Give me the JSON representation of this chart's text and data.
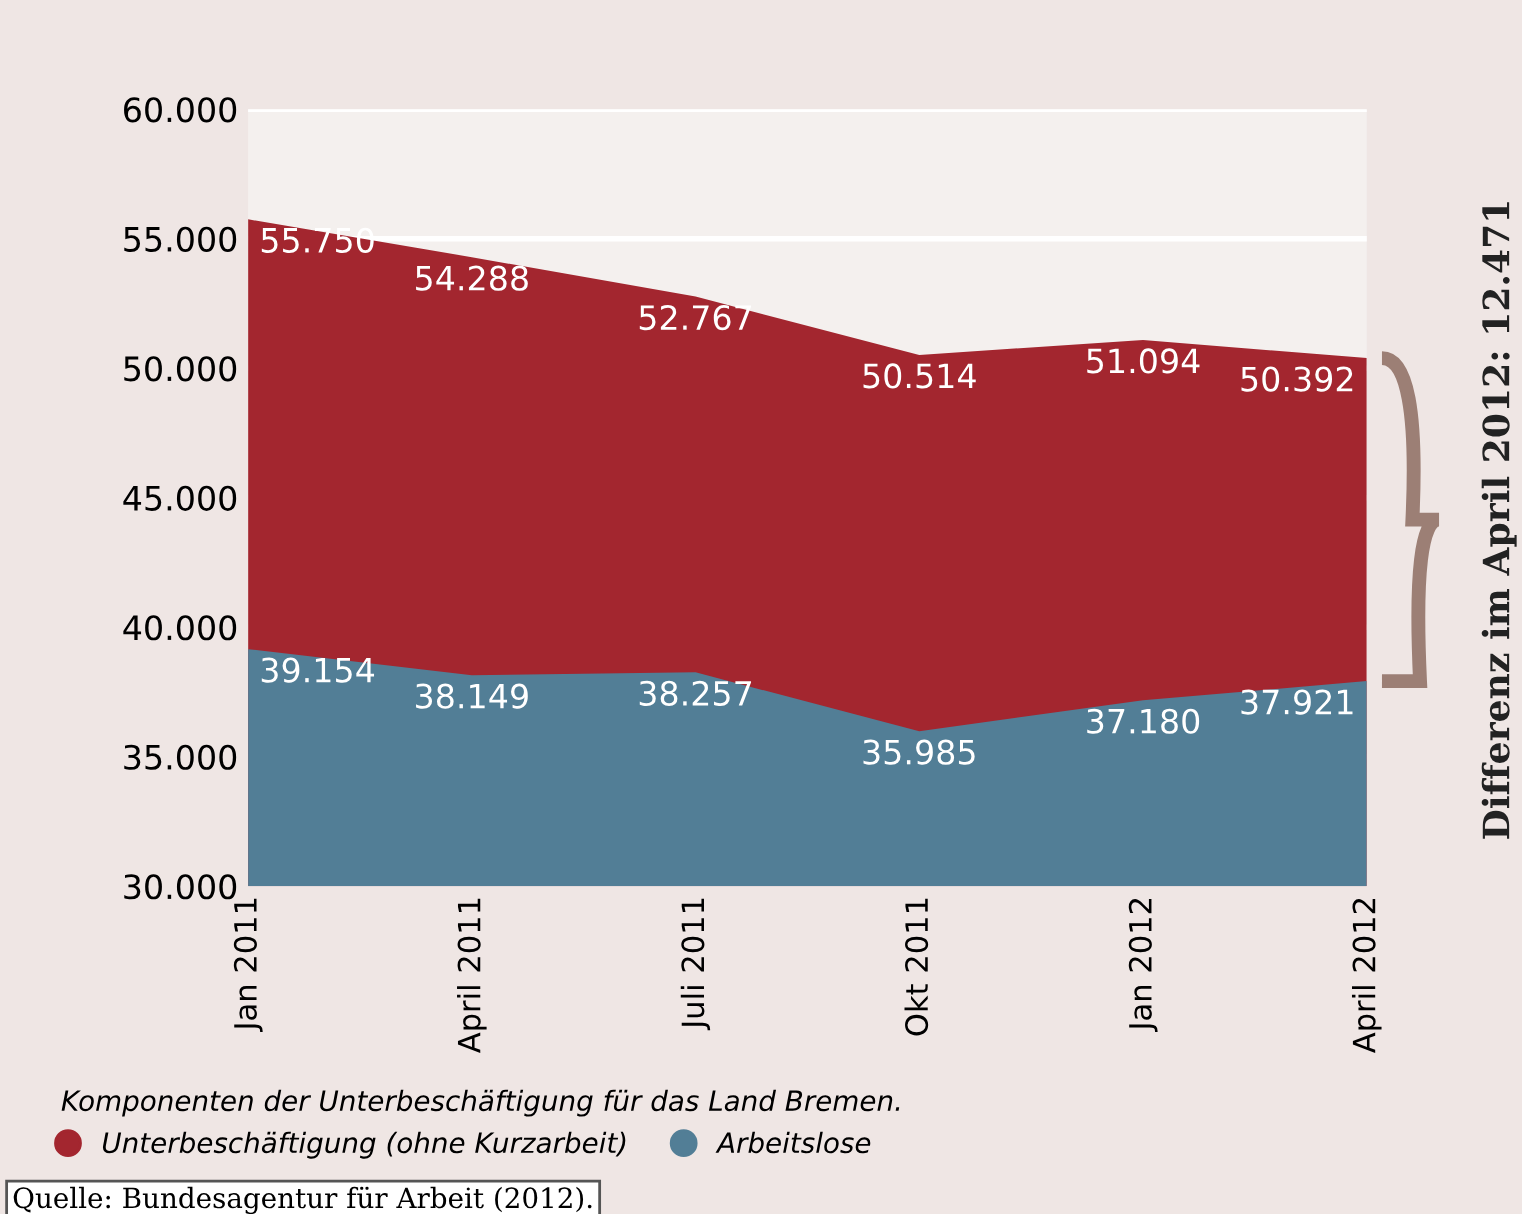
{
  "chart_data": {
    "type": "area",
    "categories": [
      "Jan 2011",
      "April 2011",
      "Juli 2011",
      "Okt 2011",
      "Jan 2012",
      "April 2012"
    ],
    "series": [
      {
        "name": "Unterbeschäftigung (ohne Kurzarbeit)",
        "color": "#a3262f",
        "values": [
          55750,
          54288,
          52767,
          50514,
          51094,
          50392
        ],
        "value_labels": [
          "55.750",
          "54.288",
          "52.767",
          "50.514",
          "51.094",
          "50.392"
        ]
      },
      {
        "name": "Arbeitslose",
        "color": "#527e96",
        "values": [
          39154,
          38149,
          38257,
          35985,
          37180,
          37921
        ],
        "value_labels": [
          "39.154",
          "38.149",
          "38.257",
          "35.985",
          "37.180",
          "37.921"
        ]
      }
    ],
    "ylim": [
      30000,
      60000
    ],
    "yticks": [
      {
        "value": 30000,
        "label": "30.000"
      },
      {
        "value": 35000,
        "label": "35.000"
      },
      {
        "value": 40000,
        "label": "40.000"
      },
      {
        "value": 45000,
        "label": "45.000"
      },
      {
        "value": 50000,
        "label": "50.000"
      },
      {
        "value": 55000,
        "label": "55.000"
      },
      {
        "value": 60000,
        "label": "60.000"
      }
    ],
    "grid": "y",
    "legend": "bottom left",
    "annotations": [
      "Komponenten der Unterbeschäftigung für das Land Bremen.",
      "Quelle: Bundesagentur für Arbeit (2012).",
      "Differenz im April 2012: 12.471"
    ]
  }
}
